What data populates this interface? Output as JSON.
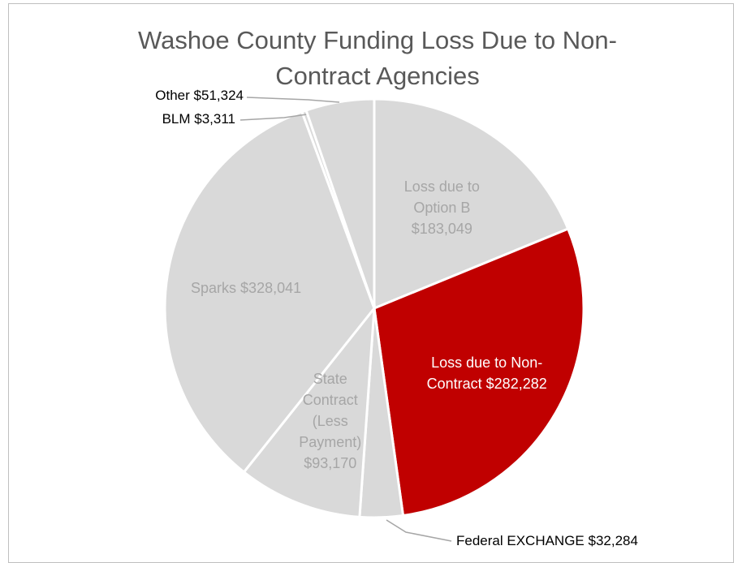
{
  "chart_data": {
    "type": "pie",
    "title": "Washoe County Funding Loss Due to Non-Contract Agencies",
    "categories": [
      "Loss due to Option B",
      "Loss due to Non-Contract",
      "Federal EXCHANGE",
      "State Contract (Less Payment)",
      "Sparks",
      "BLM",
      "Other"
    ],
    "values": [
      183049,
      282282,
      32284,
      93170,
      328041,
      3311,
      51324
    ],
    "value_labels": [
      "$183,049",
      "$282,282",
      "$32,284",
      "$93,170",
      "$328,041",
      "$3,311",
      "$51,324"
    ],
    "colors": [
      "#d9d9d9",
      "#c00000",
      "#d9d9d9",
      "#d9d9d9",
      "#d9d9d9",
      "#d9d9d9",
      "#d9d9d9"
    ]
  }
}
